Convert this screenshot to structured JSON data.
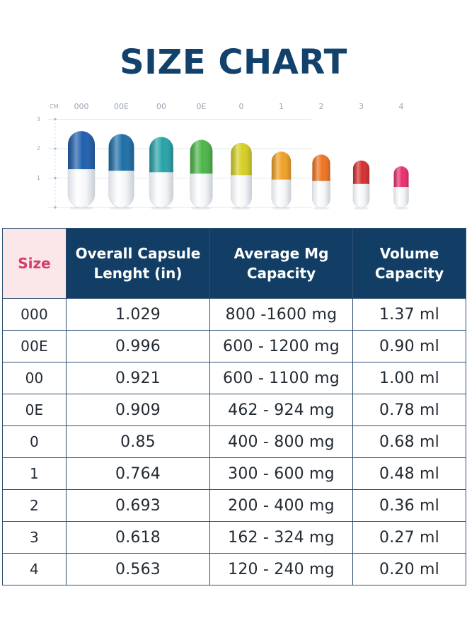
{
  "title": "SIZE CHART",
  "ruler": {
    "unit": "CM.",
    "y_ticks": [
      "3",
      "2",
      "1"
    ],
    "capsules": [
      {
        "size": "000",
        "height_cm": 2.6,
        "cap": "#1f5fae"
      },
      {
        "size": "00E",
        "height_cm": 2.5,
        "cap": "#1d6fa8"
      },
      {
        "size": "00",
        "height_cm": 2.4,
        "cap": "#27a3a8"
      },
      {
        "size": "0E",
        "height_cm": 2.3,
        "cap": "#4cb648"
      },
      {
        "size": "0",
        "height_cm": 2.2,
        "cap": "#d6cf26"
      },
      {
        "size": "1",
        "height_cm": 1.9,
        "cap": "#f0a126"
      },
      {
        "size": "2",
        "height_cm": 1.8,
        "cap": "#ef7422"
      },
      {
        "size": "3",
        "height_cm": 1.6,
        "cap": "#d62f2f"
      },
      {
        "size": "4",
        "height_cm": 1.4,
        "cap": "#e8316f"
      }
    ]
  },
  "table": {
    "headers": {
      "size": "Size",
      "length_line1": "Overall Capsule",
      "length_line2": "Lenght (in)",
      "mg_line1": "Average Mg",
      "mg_line2": "Capacity",
      "vol_line1": "Volume",
      "vol_line2": "Capacity"
    },
    "rows": [
      {
        "size": "000",
        "length": "1.029",
        "mg": "800 -1600 mg",
        "volume": "1.37 ml"
      },
      {
        "size": "00E",
        "length": "0.996",
        "mg": "600 - 1200 mg",
        "volume": "0.90 ml"
      },
      {
        "size": "00",
        "length": "0.921",
        "mg": "600 - 1100 mg",
        "volume": "1.00 ml"
      },
      {
        "size": "0E",
        "length": "0.909",
        "mg": "462 - 924 mg",
        "volume": "0.78 ml"
      },
      {
        "size": "0",
        "length": "0.85",
        "mg": "400 - 800 mg",
        "volume": "0.68 ml"
      },
      {
        "size": "1",
        "length": "0.764",
        "mg": "300 - 600 mg",
        "volume": "0.48 ml"
      },
      {
        "size": "2",
        "length": "0.693",
        "mg": "200 - 400 mg",
        "volume": "0.36 ml"
      },
      {
        "size": "3",
        "length": "0.618",
        "mg": "162 - 324 mg",
        "volume": "0.27 ml"
      },
      {
        "size": "4",
        "length": "0.563",
        "mg": "120 - 240 mg",
        "volume": "0.20 ml"
      }
    ]
  }
}
